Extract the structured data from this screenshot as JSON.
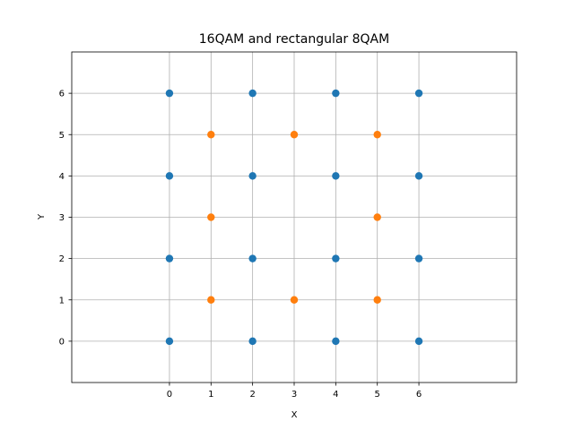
{
  "chart_data": {
    "type": "scatter",
    "title": "16QAM and rectangular 8QAM",
    "xlabel": "X",
    "ylabel": "Y",
    "xlim": [
      -2.35,
      8.35
    ],
    "ylim": [
      -1,
      7
    ],
    "xticks": [
      0,
      1,
      2,
      3,
      4,
      5,
      6
    ],
    "yticks": [
      0,
      1,
      2,
      3,
      4,
      5,
      6
    ],
    "grid": true,
    "series": [
      {
        "color": "#1f77b4",
        "points": [
          [
            0,
            0
          ],
          [
            2,
            0
          ],
          [
            4,
            0
          ],
          [
            6,
            0
          ],
          [
            0,
            2
          ],
          [
            2,
            2
          ],
          [
            4,
            2
          ],
          [
            6,
            2
          ],
          [
            0,
            4
          ],
          [
            2,
            4
          ],
          [
            4,
            4
          ],
          [
            6,
            4
          ],
          [
            0,
            6
          ],
          [
            2,
            6
          ],
          [
            4,
            6
          ],
          [
            6,
            6
          ]
        ]
      },
      {
        "color": "#ff7f0e",
        "points": [
          [
            1,
            1
          ],
          [
            3,
            1
          ],
          [
            5,
            1
          ],
          [
            1,
            3
          ],
          [
            5,
            3
          ],
          [
            1,
            5
          ],
          [
            3,
            5
          ],
          [
            5,
            5
          ]
        ]
      }
    ]
  }
}
